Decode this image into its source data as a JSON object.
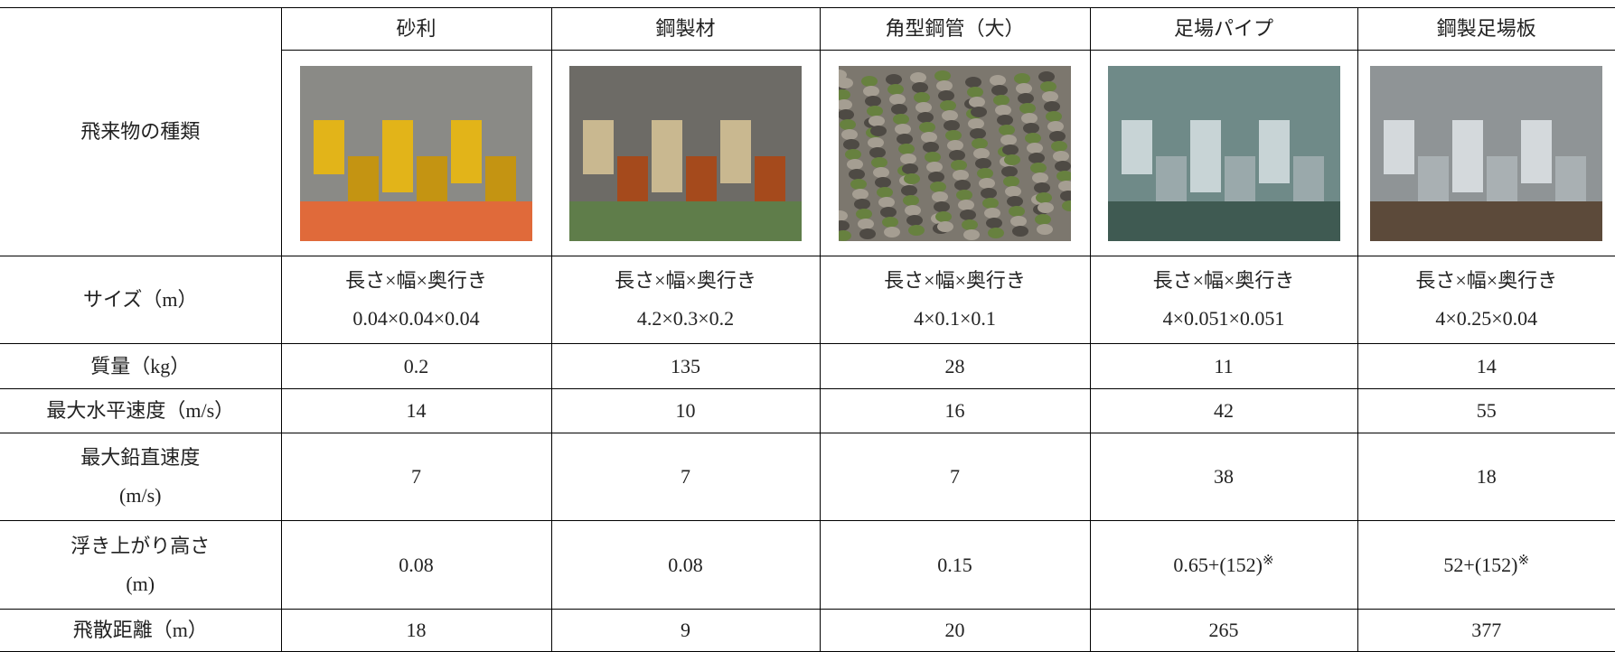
{
  "table": {
    "corner": "飛来物の種類",
    "columns": [
      "砂利",
      "鋼製材",
      "角型鋼管（大）",
      "足場パイプ",
      "鋼製足場板"
    ],
    "rows": [
      {
        "label": [
          "サイズ（m）"
        ],
        "cells": [
          [
            "長さ×幅×奥行き",
            "0.04×0.04×0.04"
          ],
          [
            "長さ×幅×奥行き",
            "4.2×0.3×0.2"
          ],
          [
            "長さ×幅×奥行き",
            "4×0.1×0.1"
          ],
          [
            "長さ×幅×奥行き",
            "4×0.051×0.051"
          ],
          [
            "長さ×幅×奥行き",
            "4×0.25×0.04"
          ]
        ]
      },
      {
        "label": [
          "質量（kg）"
        ],
        "cells": [
          [
            "0.2"
          ],
          [
            "135"
          ],
          [
            "28"
          ],
          [
            "11"
          ],
          [
            "14"
          ]
        ]
      },
      {
        "label": [
          "最大水平速度（m/s）"
        ],
        "cells": [
          [
            "14"
          ],
          [
            "10"
          ],
          [
            "16"
          ],
          [
            "42"
          ],
          [
            "55"
          ]
        ]
      },
      {
        "label": [
          "最大鉛直速度",
          "(m/s)"
        ],
        "cells": [
          [
            "7"
          ],
          [
            "7"
          ],
          [
            "7"
          ],
          [
            "38"
          ],
          [
            "18"
          ]
        ]
      },
      {
        "label": [
          "浮き上がり高さ",
          "(m)"
        ],
        "cells": [
          [
            "0.08"
          ],
          [
            "0.08"
          ],
          [
            "0.15"
          ],
          [
            {
              "text": "0.65+(152)",
              "sup": "※"
            }
          ],
          [
            {
              "text": "52+(152)",
              "sup": "※"
            }
          ]
        ]
      },
      {
        "label": [
          "飛散距離（m）"
        ],
        "cells": [
          [
            "18"
          ],
          [
            "9"
          ],
          [
            "20"
          ],
          [
            "265"
          ],
          [
            "377"
          ]
        ]
      }
    ]
  }
}
